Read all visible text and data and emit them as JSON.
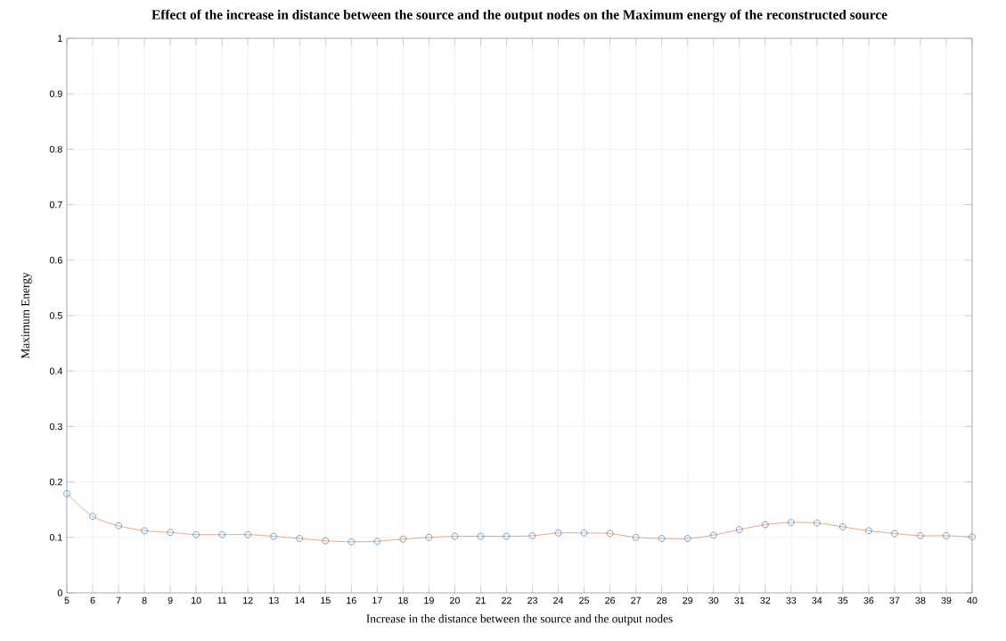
{
  "chart_data": {
    "type": "line",
    "title": "Effect of the increase in distance between the source and the output nodes on the Maximum energy of the reconstructed source",
    "xlabel": "Increase in the distance between the source and the output nodes",
    "ylabel": "Maximum Energy",
    "x": [
      5,
      6,
      7,
      8,
      9,
      10,
      11,
      12,
      13,
      14,
      15,
      16,
      17,
      18,
      19,
      20,
      21,
      22,
      23,
      24,
      25,
      26,
      27,
      28,
      29,
      30,
      31,
      32,
      33,
      34,
      35,
      36,
      37,
      38,
      39,
      40
    ],
    "series": [
      {
        "marker": "none",
        "line_style": "solid",
        "color": "#e8a07c",
        "values": [
          0.179,
          0.138,
          0.121,
          0.112,
          0.109,
          0.105,
          0.105,
          0.105,
          0.102,
          0.098,
          0.094,
          0.092,
          0.093,
          0.097,
          0.1,
          0.102,
          0.102,
          0.102,
          0.103,
          0.108,
          0.108,
          0.107,
          0.1,
          0.098,
          0.098,
          0.104,
          0.114,
          0.123,
          0.127,
          0.126,
          0.119,
          0.112,
          0.107,
          0.103,
          0.103,
          0.101
        ]
      },
      {
        "type": "scatter",
        "marker": "circle",
        "color": "#4f8fbf",
        "values": [
          0.179,
          0.138,
          0.121,
          0.112,
          0.109,
          0.105,
          0.105,
          0.105,
          0.102,
          0.098,
          0.094,
          0.092,
          0.093,
          0.097,
          0.1,
          0.102,
          0.102,
          0.102,
          0.103,
          0.108,
          0.108,
          0.107,
          0.1,
          0.098,
          0.098,
          0.104,
          0.114,
          0.123,
          0.127,
          0.126,
          0.119,
          0.112,
          0.107,
          0.103,
          0.103,
          0.101
        ]
      }
    ],
    "xlim": [
      5,
      40
    ],
    "ylim": [
      0,
      1
    ],
    "xticks": [
      5,
      6,
      7,
      8,
      9,
      10,
      11,
      12,
      13,
      14,
      15,
      16,
      17,
      18,
      19,
      20,
      21,
      22,
      23,
      24,
      25,
      26,
      27,
      28,
      29,
      30,
      31,
      32,
      33,
      34,
      35,
      36,
      37,
      38,
      39,
      40
    ],
    "yticks": [
      0,
      0.1,
      0.2,
      0.3,
      0.4,
      0.5,
      0.6,
      0.7,
      0.8,
      0.9,
      1
    ],
    "grid": true
  }
}
